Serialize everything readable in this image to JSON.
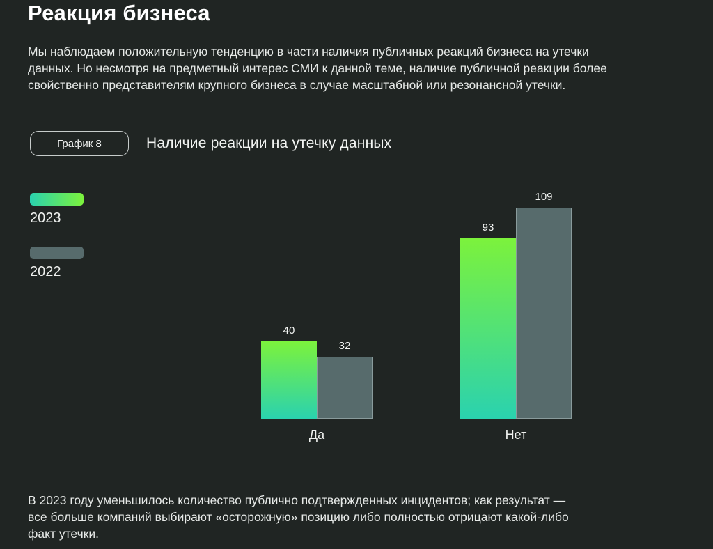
{
  "page": {
    "title": "Реакция бизнеса",
    "intro_lines": [
      "Мы наблюдаем положительную тенденцию в части наличия публичных реакций бизнеса на утечки",
      "данных. Но несмотря на предметный интерес СМИ к данной теме, наличие публичной реакции более",
      "свойственно представителям крупного бизнеса в случае масштабной или резонансной утечки."
    ],
    "conclusion_lines": [
      "В 2023 году уменьшилось количество публично подтвержденных инцидентов; как результат —",
      "все больше компаний выбирают «осторожную» позицию либо полностью отрицают какой-либо",
      "факт утечки."
    ]
  },
  "chart": {
    "badge": "График 8",
    "title": "Наличие реакции на утечку данных"
  },
  "colors": {
    "background": "#202523",
    "green_top": "#7cf23c",
    "green_bottom": "#2ad2af",
    "gray_bar": "#576b6c",
    "text": "#e6e9e7"
  },
  "chart_data": {
    "type": "bar",
    "title": "Наличие реакции на утечку данных",
    "categories": [
      "Да",
      "Нет"
    ],
    "series": [
      {
        "name": "2023",
        "values": [
          40,
          93
        ],
        "gradient": [
          "#7cf23c",
          "#2ad2af"
        ]
      },
      {
        "name": "2022",
        "values": [
          32,
          109
        ],
        "color": "#576b6c"
      }
    ],
    "value_labels": [
      [
        40,
        93
      ],
      [
        32,
        109
      ]
    ],
    "xlabel": "",
    "ylabel": "",
    "ylim": [
      0,
      120
    ],
    "grid": false,
    "axes": "none",
    "legend_position": "left"
  }
}
